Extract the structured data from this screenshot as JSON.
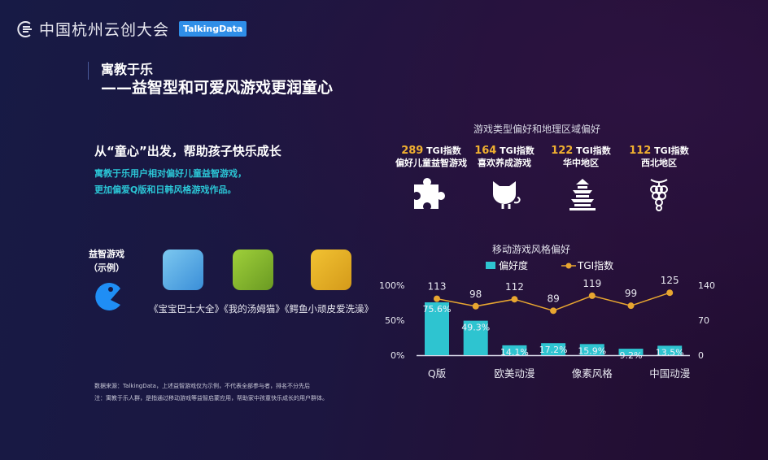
{
  "header": {
    "brand": "中国杭州云创大会",
    "badge": "TalkingData"
  },
  "title": {
    "line1": "寓教于乐",
    "line2": "——益智型和可爱风游戏更润童心"
  },
  "left": {
    "subtitle": "从“童心”出发，帮助孩子快乐成长",
    "desc1": "寓教于乐用户相对偏好儿童益智游戏，",
    "desc2": "更加偏爱Q版和日韩风格游戏作品。",
    "puzzle_label1": "益智游戏",
    "puzzle_label2": "（示例）",
    "apps": [
      "《宝宝巴士大全》",
      "《我的汤姆猫》",
      "《鳄鱼小顽皮爱洗澡》"
    ]
  },
  "footnotes": [
    "数据来源：TalkingData，上述益智游戏仅为示例，不代表全部参与者，排名不分先后",
    "注：寓教于乐人群，是指通过移动游戏等益智启蒙应用，帮助家中孩童快乐成长的用户群体。"
  ],
  "preferences": {
    "title": "游戏类型偏好和地理区域偏好",
    "unit": "TGI指数",
    "cards": [
      {
        "value": "289",
        "label": "偏好儿童益智游戏",
        "icon": "puzzle-icon"
      },
      {
        "value": "164",
        "label": "喜欢养成游戏",
        "icon": "cat-icon"
      },
      {
        "value": "122",
        "label": "华中地区",
        "icon": "pagoda-icon"
      },
      {
        "value": "112",
        "label": "西北地区",
        "icon": "grapes-icon"
      }
    ]
  },
  "chart_data": {
    "type": "bar+line",
    "title": "移动游戏风格偏好",
    "categories": [
      "Q版",
      "",
      "欧美动漫",
      "",
      "像素风格",
      "",
      "中国动漫"
    ],
    "series": [
      {
        "name": "偏好度",
        "type": "bar",
        "values": [
          75.6,
          49.3,
          14.1,
          17.2,
          15.9,
          9.2,
          13.5
        ],
        "labels": [
          "75.6%",
          "49.3%",
          "14.1%",
          "17.2%",
          "15.9%",
          "9.2%",
          "13.5%"
        ],
        "color": "#2ec4d0"
      },
      {
        "name": "TGI指数",
        "type": "line",
        "values": [
          113,
          98,
          112,
          89,
          119,
          99,
          125
        ],
        "color": "#e8a630"
      }
    ],
    "y_left": {
      "range": [
        0,
        100
      ],
      "ticks": [
        "100%",
        "50%",
        "0%"
      ]
    },
    "y_right": {
      "range": [
        0,
        140
      ],
      "ticks": [
        "140",
        "70",
        "0"
      ]
    },
    "legend": "top"
  }
}
